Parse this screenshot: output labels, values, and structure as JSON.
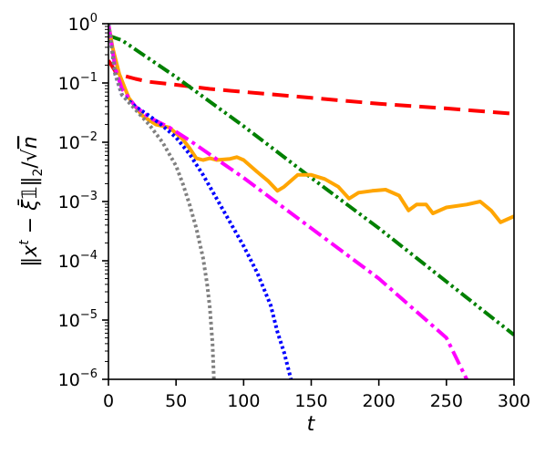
{
  "chart_data": {
    "type": "line",
    "xlabel": "t",
    "ylabel": "‖x^t − ξ̄1‖₂/√n",
    "xlim": [
      0,
      300
    ],
    "ylim_log10": [
      -6,
      0
    ],
    "y_scale": "log",
    "grid": false,
    "x_ticks": [
      0,
      50,
      100,
      150,
      200,
      250,
      300
    ],
    "x_tick_labels": [
      "0",
      "50",
      "100",
      "150",
      "200",
      "250",
      "300"
    ],
    "y_ticks_exp": [
      0,
      -1,
      -2,
      -3,
      -4,
      -5,
      -6
    ],
    "y_tick_labels": [
      "10^0",
      "10^−1",
      "10^−2",
      "10^−3",
      "10^−4",
      "10^−5",
      "10^−6"
    ],
    "series": [
      {
        "color": "#ff0000",
        "style": "dashed",
        "x": [
          0,
          5,
          10,
          20,
          30,
          50,
          75,
          100,
          150,
          200,
          250,
          300
        ],
        "log10y": [
          -0.62,
          -0.8,
          -0.87,
          -0.93,
          -0.98,
          -1.03,
          -1.1,
          -1.15,
          -1.25,
          -1.35,
          -1.43,
          -1.52
        ]
      },
      {
        "color": "#008000",
        "style": "dashdotdot",
        "x": [
          0,
          10,
          50,
          100,
          150,
          200,
          250,
          300
        ],
        "log10y": [
          -0.2,
          -0.28,
          -0.9,
          -1.73,
          -2.6,
          -3.45,
          -4.35,
          -5.25
        ]
      },
      {
        "color": "#ffa500",
        "style": "solid",
        "x": [
          0,
          3,
          8,
          15,
          25,
          35,
          45,
          55,
          60,
          65,
          70,
          75,
          80,
          90,
          95,
          100,
          110,
          118,
          125,
          130,
          140,
          150,
          160,
          170,
          178,
          185,
          195,
          205,
          215,
          222,
          228,
          235,
          240,
          250,
          265,
          275,
          283,
          290,
          295,
          300
        ],
        "log10y": [
          0,
          -0.4,
          -0.85,
          -1.25,
          -1.55,
          -1.7,
          -1.75,
          -1.95,
          -2.1,
          -2.27,
          -2.3,
          -2.27,
          -2.3,
          -2.28,
          -2.25,
          -2.3,
          -2.5,
          -2.65,
          -2.82,
          -2.75,
          -2.55,
          -2.55,
          -2.62,
          -2.75,
          -2.95,
          -2.85,
          -2.82,
          -2.8,
          -2.9,
          -3.15,
          -3.05,
          -3.05,
          -3.2,
          -3.1,
          -3.05,
          -3.0,
          -3.15,
          -3.35,
          -3.3,
          -3.25
        ]
      },
      {
        "color": "#ff00ff",
        "style": "dashdot",
        "x": [
          0,
          5,
          10,
          20,
          30,
          45,
          60,
          100,
          150,
          200,
          250,
          265
        ],
        "log10y": [
          0,
          -0.75,
          -1.1,
          -1.4,
          -1.58,
          -1.75,
          -1.97,
          -2.6,
          -3.45,
          -4.3,
          -5.3,
          -6.0
        ]
      },
      {
        "color": "#0000ff",
        "style": "dotted",
        "x": [
          0,
          5,
          10,
          20,
          30,
          40,
          50,
          60,
          70,
          80,
          90,
          100,
          110,
          120,
          125,
          130,
          135
        ],
        "log10y": [
          0,
          -0.85,
          -1.2,
          -1.4,
          -1.55,
          -1.72,
          -1.92,
          -2.2,
          -2.55,
          -2.95,
          -3.35,
          -3.75,
          -4.2,
          -4.75,
          -5.2,
          -5.55,
          -6.0
        ]
      },
      {
        "color": "#808080",
        "style": "dotted",
        "x": [
          0,
          5,
          10,
          20,
          30,
          40,
          50,
          55,
          60,
          65,
          70,
          73,
          75,
          77,
          78
        ],
        "log10y": [
          0,
          -0.85,
          -1.2,
          -1.45,
          -1.7,
          -2.0,
          -2.4,
          -2.7,
          -3.05,
          -3.45,
          -3.95,
          -4.4,
          -4.8,
          -5.4,
          -6.0
        ]
      }
    ]
  }
}
